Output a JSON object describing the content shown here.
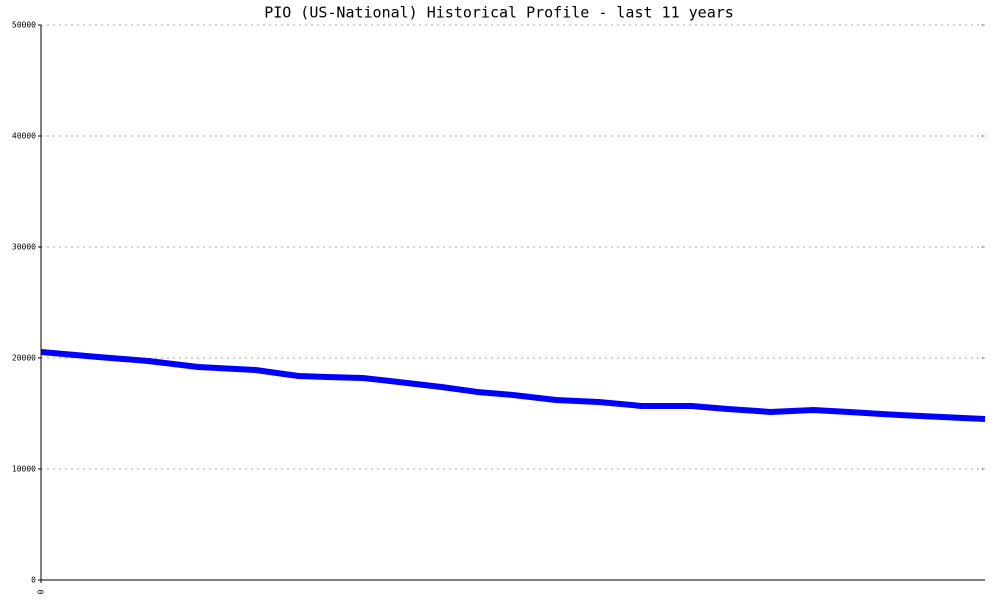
{
  "chart_data": {
    "type": "line",
    "title": "PIO (US-National) Historical Profile - last 11 years",
    "x": [
      0,
      8,
      15,
      22,
      30,
      36,
      40,
      45,
      50,
      56,
      61,
      66,
      72,
      78,
      84,
      91,
      96,
      102,
      108,
      113,
      120,
      132
    ],
    "series": [
      {
        "name": "PIO",
        "color": "#0000ff",
        "values": [
          20540,
          20090,
          19730,
          19190,
          18920,
          18380,
          18290,
          18200,
          17840,
          17390,
          16940,
          16670,
          16220,
          16040,
          15680,
          15680,
          15410,
          15140,
          15320,
          15140,
          14860,
          14500
        ]
      }
    ],
    "xlim": [
      0,
      132
    ],
    "xticks": [
      0
    ],
    "ylim": [
      0,
      50000
    ],
    "yticks": [
      0,
      10000,
      20000,
      30000,
      40000,
      50000
    ],
    "grid": true
  }
}
